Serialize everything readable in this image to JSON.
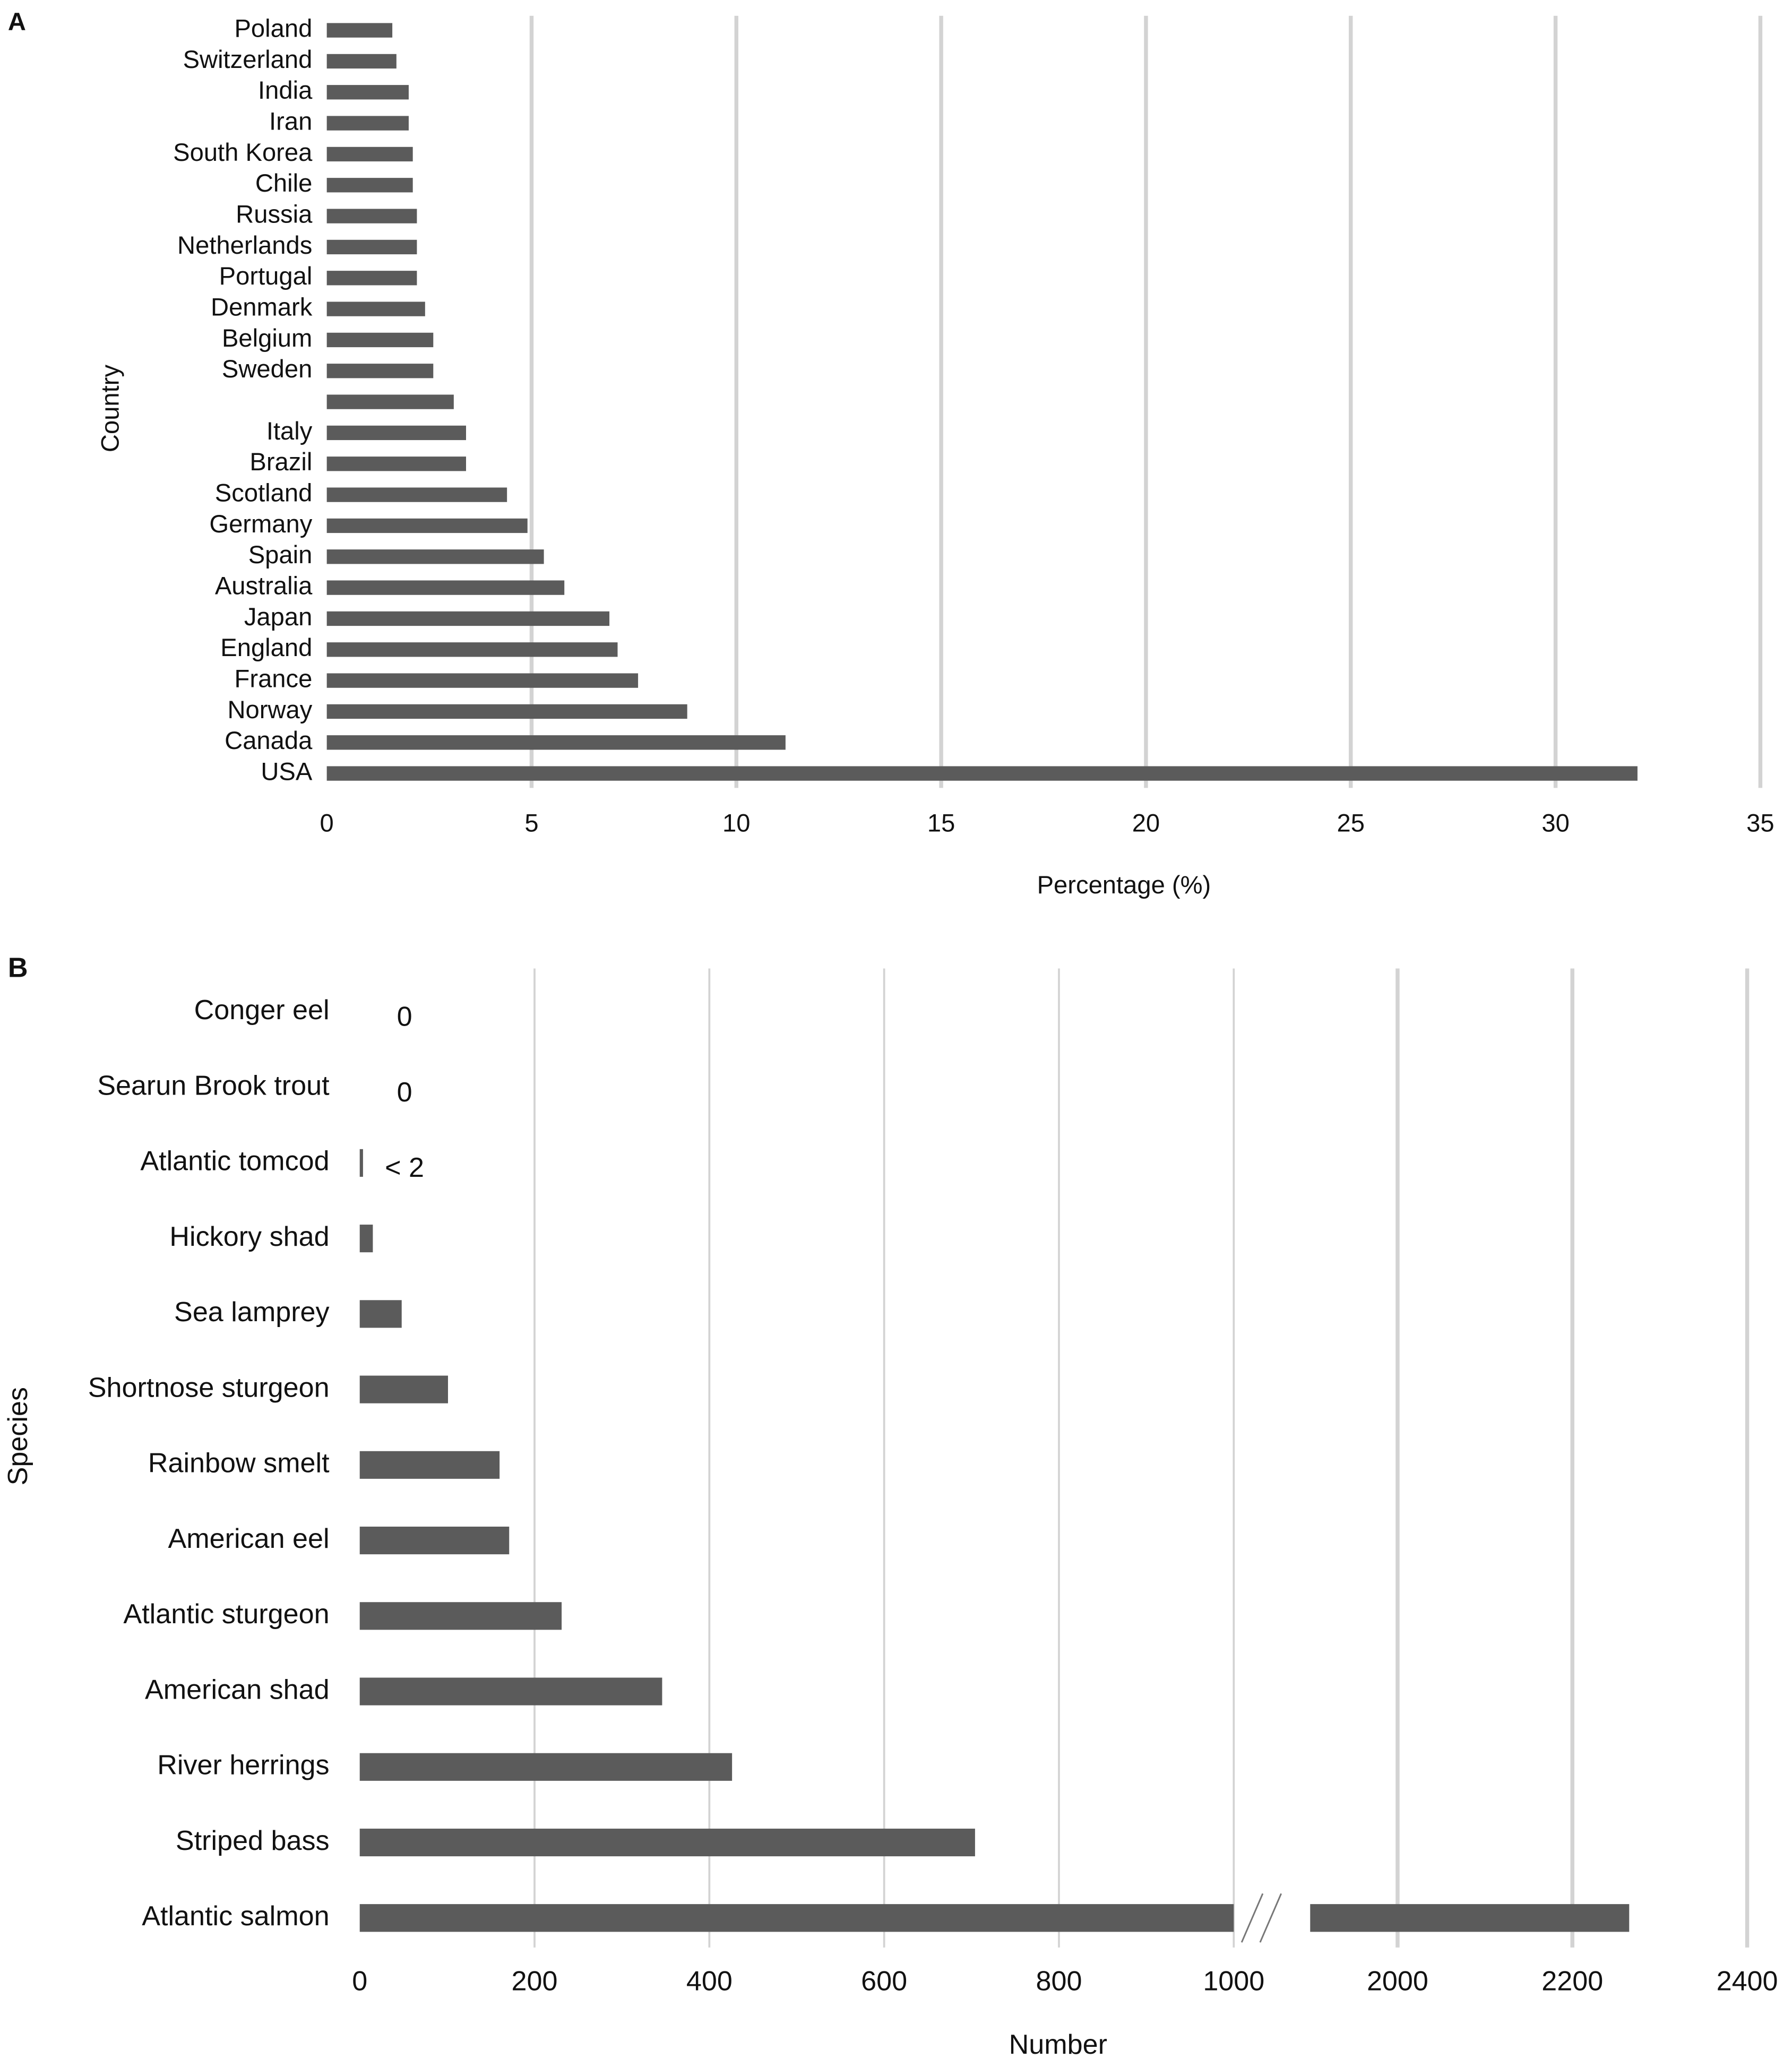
{
  "chart_data": [
    {
      "type": "bar",
      "orientation": "horizontal",
      "panel": "A",
      "categories": [
        "Poland",
        "Switzerland",
        "India",
        "Iran",
        "South Korea",
        "Chile",
        "Russia",
        "Netherlands",
        "Portugal",
        "Denmark",
        "Belgium",
        "Sweden",
        null,
        "Italy",
        "Brazil",
        "Scotland",
        "Germany",
        "Spain",
        "Australia",
        "Japan",
        "England",
        "France",
        "Norway",
        "Canada",
        "USA"
      ],
      "values": [
        1.6,
        1.7,
        2.0,
        2.0,
        2.1,
        2.1,
        2.2,
        2.2,
        2.2,
        2.4,
        2.6,
        2.6,
        3.1,
        3.4,
        3.4,
        4.4,
        4.9,
        5.3,
        5.8,
        6.9,
        7.1,
        7.6,
        8.8,
        11.2,
        32
      ],
      "color": "#5b5b5b",
      "xlabel": "Percentage (%)",
      "ylabel": "Country",
      "xlim": [
        0,
        35
      ],
      "xticks": [
        0,
        5,
        10,
        15,
        20,
        25,
        30,
        35
      ],
      "grid": true
    },
    {
      "type": "bar",
      "orientation": "horizontal",
      "panel": "B",
      "categories": [
        "Conger eel",
        "Searun Brook trout",
        "Atlantic tomcod",
        "Hickory shad",
        "Sea lamprey",
        "Shortnose sturgeon",
        "Rainbow smelt",
        "American eel",
        "Atlantic sturgeon",
        "American shad",
        "River herrings",
        "Striped bass",
        "Atlantic salmon"
      ],
      "values": [
        0,
        0,
        1,
        15,
        48,
        101,
        160,
        171,
        231,
        346,
        426,
        704,
        2265
      ],
      "value_labels": [
        "0",
        "0",
        "< 2",
        null,
        null,
        null,
        null,
        null,
        null,
        null,
        null,
        null,
        null
      ],
      "color": "#5b5b5b",
      "xlabel": "Number",
      "ylabel": "Species",
      "xlim": [
        0,
        2400
      ],
      "xbreak": [
        1000,
        1900
      ],
      "xticks": [
        0,
        200,
        400,
        600,
        800,
        1000,
        2000,
        2200,
        2400
      ],
      "grid": true
    }
  ]
}
